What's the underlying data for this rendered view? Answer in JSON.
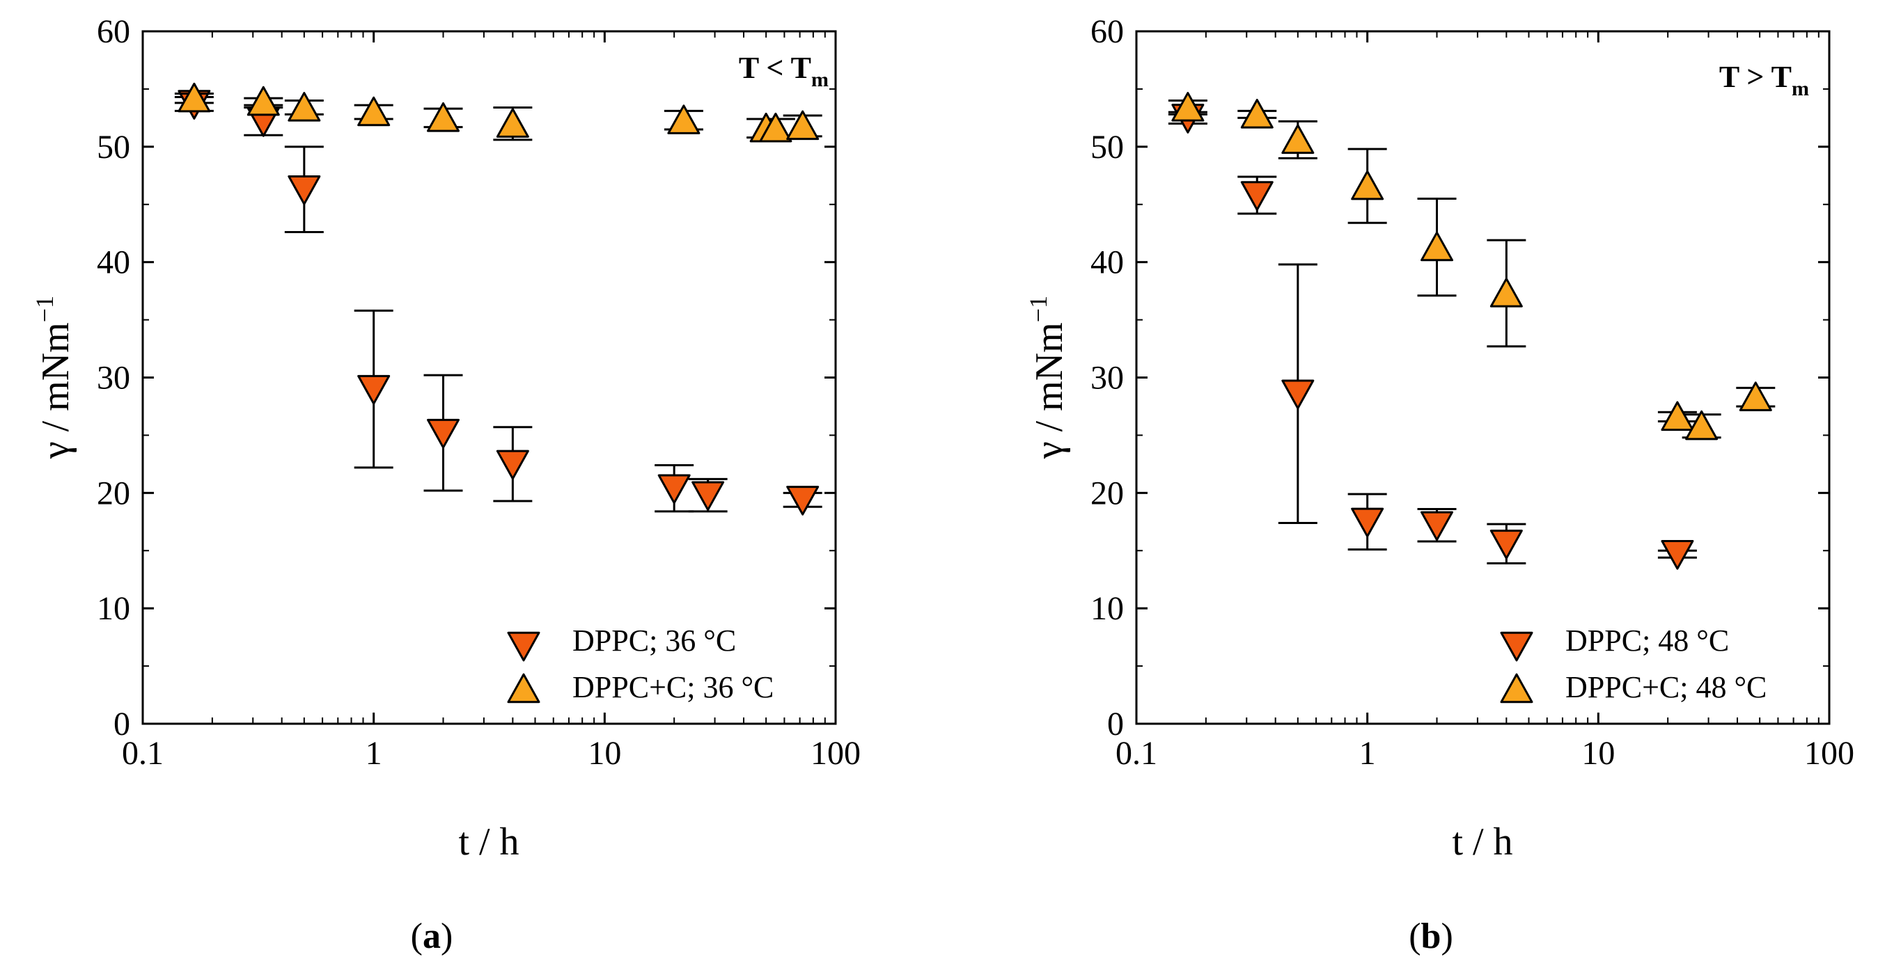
{
  "colors": {
    "dppc_fill": "#f15a0f",
    "dppc_c_fill": "#f9a51e",
    "stroke": "#000000"
  },
  "chart_data": [
    {
      "type": "scatter",
      "panel_label_open": "(",
      "panel_label_letter": "a",
      "panel_label_close": ")",
      "annotation_main": "T < T",
      "annotation_sub": "m",
      "xlabel": "t / h",
      "ylabel_main": "γ / mNm",
      "ylabel_sup": "−1",
      "xscale": "log",
      "xlim": [
        0.1,
        100
      ],
      "ylim": [
        0,
        60
      ],
      "xticks": [
        0.1,
        1,
        10,
        100
      ],
      "xtick_labels": [
        "0.1",
        "1",
        "10",
        "100"
      ],
      "yticks": [
        0,
        10,
        20,
        30,
        40,
        50,
        60
      ],
      "ytick_labels": [
        "0",
        "10",
        "20",
        "30",
        "40",
        "50",
        "60"
      ],
      "legend_position": "bottom-right",
      "series": [
        {
          "name": "DPPC; 36 °C",
          "marker": "triangle-down",
          "points": [
            {
              "x": 0.167,
              "y": 53.7,
              "err": 0.6
            },
            {
              "x": 0.333,
              "y": 52.2,
              "err": 1.2
            },
            {
              "x": 0.5,
              "y": 46.3,
              "err": 3.7
            },
            {
              "x": 1.0,
              "y": 29.0,
              "err": 6.8
            },
            {
              "x": 2.0,
              "y": 25.2,
              "err": 5.0
            },
            {
              "x": 4.0,
              "y": 22.5,
              "err": 3.2
            },
            {
              "x": 20.0,
              "y": 20.4,
              "err": 2.0
            },
            {
              "x": 28.0,
              "y": 19.8,
              "err": 1.4
            },
            {
              "x": 72.0,
              "y": 19.4,
              "err": 0.6
            }
          ]
        },
        {
          "name": "DPPC+C; 36 °C",
          "marker": "triangle-up",
          "points": [
            {
              "x": 0.167,
              "y": 54.2,
              "err": 0.4
            },
            {
              "x": 0.333,
              "y": 53.9,
              "err": 0.3
            },
            {
              "x": 0.5,
              "y": 53.4,
              "err": 0.6
            },
            {
              "x": 1.0,
              "y": 53.0,
              "err": 0.6
            },
            {
              "x": 2.0,
              "y": 52.5,
              "err": 0.8
            },
            {
              "x": 4.0,
              "y": 52.0,
              "err": 1.4
            },
            {
              "x": 22.0,
              "y": 52.3,
              "err": 0.8
            },
            {
              "x": 50.0,
              "y": 51.6,
              "err": 0.8
            },
            {
              "x": 55.0,
              "y": 51.6,
              "err": 0.8
            },
            {
              "x": 72.0,
              "y": 51.8,
              "err": 0.9
            }
          ]
        }
      ]
    },
    {
      "type": "scatter",
      "panel_label_open": "(",
      "panel_label_letter": "b",
      "panel_label_close": ")",
      "annotation_main": "T > T",
      "annotation_sub": "m",
      "xlabel": "t / h",
      "ylabel_main": "γ / mNm",
      "ylabel_sup": "−1",
      "xscale": "log",
      "xlim": [
        0.1,
        100
      ],
      "ylim": [
        0,
        60
      ],
      "xticks": [
        0.1,
        1,
        10,
        100
      ],
      "xtick_labels": [
        "0.1",
        "1",
        "10",
        "100"
      ],
      "yticks": [
        0,
        10,
        20,
        30,
        40,
        50,
        60
      ],
      "ytick_labels": [
        "0",
        "10",
        "20",
        "30",
        "40",
        "50",
        "60"
      ],
      "legend_position": "bottom-right",
      "series": [
        {
          "name": "DPPC; 48 °C",
          "marker": "triangle-down",
          "points": [
            {
              "x": 0.167,
              "y": 52.5,
              "err": 0.5
            },
            {
              "x": 0.333,
              "y": 45.8,
              "err": 1.6
            },
            {
              "x": 0.5,
              "y": 28.6,
              "err": 11.2
            },
            {
              "x": 1.0,
              "y": 17.5,
              "err": 2.4
            },
            {
              "x": 2.0,
              "y": 17.2,
              "err": 1.4
            },
            {
              "x": 4.0,
              "y": 15.6,
              "err": 1.7
            },
            {
              "x": 22.0,
              "y": 14.7,
              "err": 0.3
            }
          ]
        },
        {
          "name": "DPPC+C; 48 °C",
          "marker": "triangle-up",
          "points": [
            {
              "x": 0.167,
              "y": 53.4,
              "err": 0.6
            },
            {
              "x": 0.333,
              "y": 52.8,
              "err": 0.3
            },
            {
              "x": 0.5,
              "y": 50.6,
              "err": 1.6
            },
            {
              "x": 1.0,
              "y": 46.6,
              "err": 3.2
            },
            {
              "x": 2.0,
              "y": 41.3,
              "err": 4.2
            },
            {
              "x": 4.0,
              "y": 37.3,
              "err": 4.6
            },
            {
              "x": 22.0,
              "y": 26.6,
              "err": 0.4
            },
            {
              "x": 28.0,
              "y": 25.8,
              "err": 1.0
            },
            {
              "x": 48.0,
              "y": 28.3,
              "err": 0.8
            }
          ]
        }
      ]
    }
  ]
}
